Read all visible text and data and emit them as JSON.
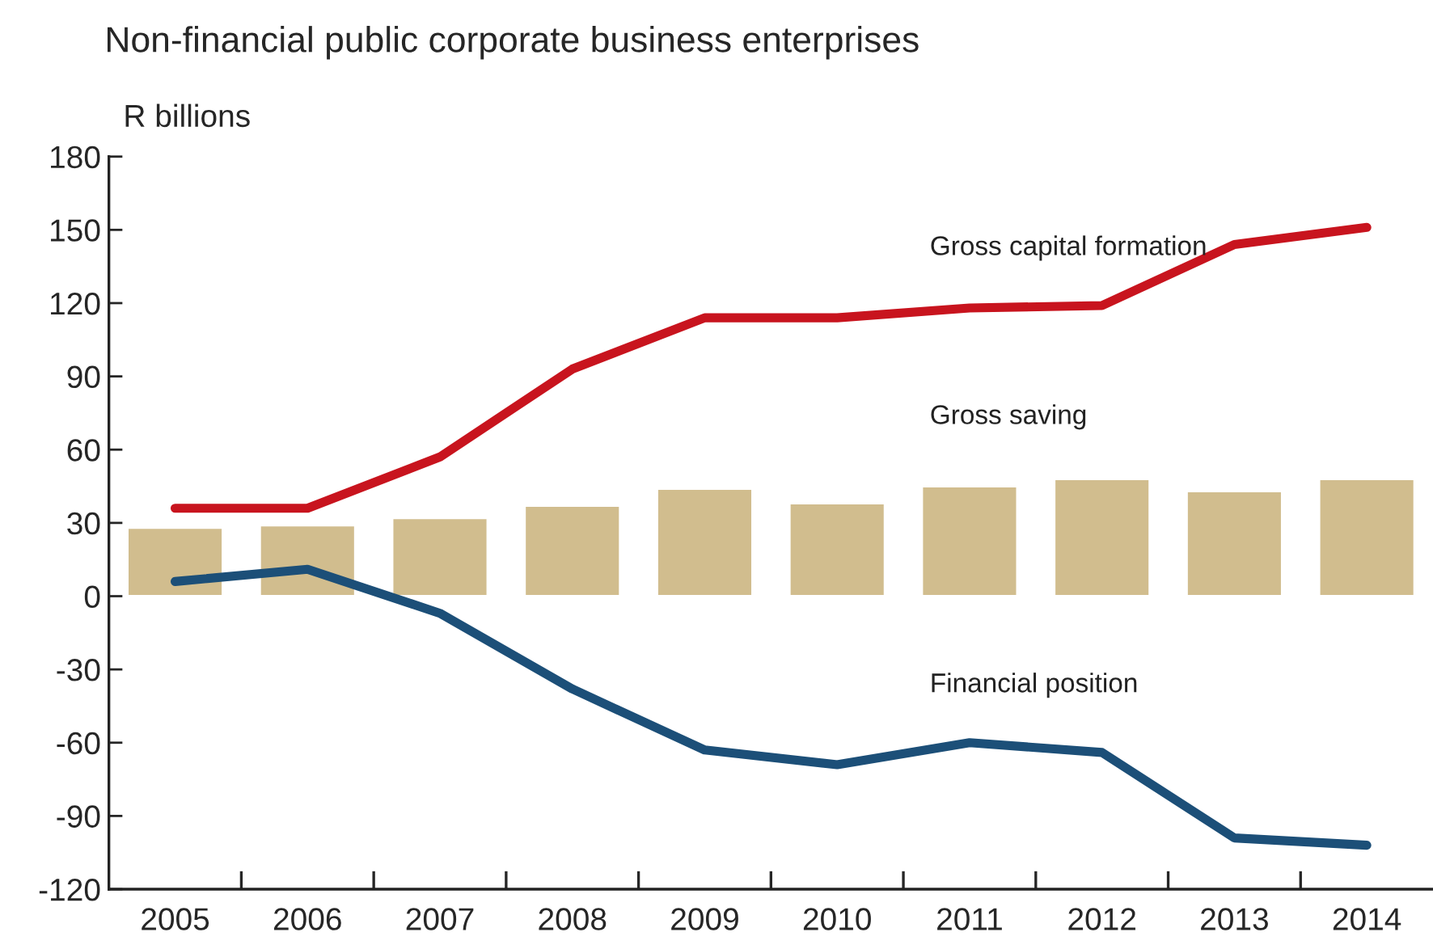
{
  "chart_data": {
    "type": "bar",
    "title": "Non-financial public corporate business enterprises",
    "ylabel": "R billions",
    "categories": [
      "2005",
      "2006",
      "2007",
      "2008",
      "2009",
      "2010",
      "2011",
      "2012",
      "2013",
      "2014"
    ],
    "series": [
      {
        "name": "Gross saving",
        "color": "#d1bd8e",
        "values": [
          28,
          29,
          32,
          37,
          44,
          38,
          45,
          48,
          43,
          48
        ]
      },
      {
        "name": "Gross capital formation",
        "type": "line",
        "color": "#c8141e",
        "values": [
          36,
          36,
          57,
          93,
          114,
          114,
          118,
          119,
          144,
          151
        ]
      },
      {
        "name": "Financial position",
        "type": "line",
        "color": "#1c4f78",
        "values": [
          6,
          11,
          -7,
          -38,
          -63,
          -69,
          -60,
          -64,
          -99,
          -102
        ]
      }
    ],
    "ylim": [
      -120,
      180
    ],
    "yticks": [
      -120,
      -90,
      -60,
      -30,
      0,
      30,
      60,
      90,
      120,
      150,
      180
    ],
    "grid": false,
    "legend": false
  }
}
